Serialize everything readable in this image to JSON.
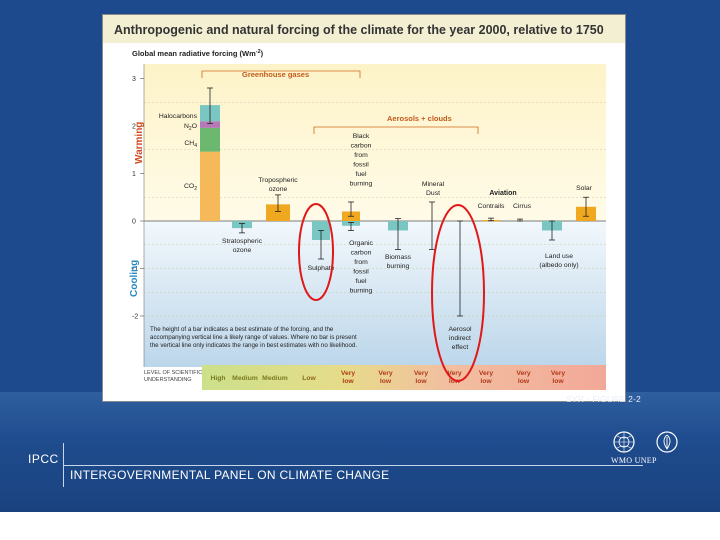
{
  "figure": {
    "title": "Anthropogenic and natural forcing of the climate for the year 2000, relative to 1750",
    "ylabel": "Global mean radiative forcing (Wm",
    "ylabel_sup": "-2",
    "ylabel_close": ")",
    "warming_label": "Warming",
    "cooling_label": "Cooling",
    "greenhouse_label": "Greenhouse gases",
    "aerosols_label": "Aerosols + clouds",
    "aviation_label": "Aviation",
    "note_lines": [
      "The height of a bar indicates a best estimate of the forcing, and the",
      "accompanying vertical line a likely range of values.  Where no bar is present",
      "the vertical line only indicates the range in best estimates with no likelihood."
    ],
    "los_label": [
      "LEVEL OF SCIENTIFIC",
      "UNDERSTANDING"
    ],
    "caption": "SYR - FIGURE 2-2"
  },
  "chart_data": {
    "type": "bar",
    "title": "Anthropogenic and natural forcing of the climate for the year 2000, relative to 1750",
    "ylabel": "Global mean radiative forcing (Wm-2)",
    "ylim": [
      -2.4,
      3.2
    ],
    "yticks": [
      -2,
      -1,
      0,
      1,
      2,
      3
    ],
    "grid": false,
    "categories": [
      {
        "key": "ghg",
        "label": "Greenhouse gases",
        "stack": [
          {
            "name": "CO2",
            "value": 1.46,
            "color": "#f5b959"
          },
          {
            "name": "CH4",
            "value": 0.5,
            "color": "#6cb871"
          },
          {
            "name": "N2O",
            "value": 0.14,
            "color": "#b57ab5"
          },
          {
            "name": "Halocarbons",
            "value": 0.34,
            "color": "#79c6c3"
          }
        ],
        "value": 2.44,
        "range": [
          2.05,
          2.8
        ],
        "understanding": "High"
      },
      {
        "key": "strat_ozone",
        "label": "Stratospheric ozone",
        "value": -0.15,
        "range": [
          -0.25,
          -0.05
        ],
        "color": "#79c6c3",
        "understanding": "Medium"
      },
      {
        "key": "trop_ozone",
        "label": "Tropospheric ozone",
        "value": 0.35,
        "range": [
          0.2,
          0.55
        ],
        "color": "#f0a820",
        "understanding": "Medium"
      },
      {
        "key": "sulphate",
        "label": "Sulphate",
        "value": -0.4,
        "range": [
          -0.8,
          -0.2
        ],
        "color": "#79c6c3",
        "understanding": "Low"
      },
      {
        "key": "fossil_bc",
        "label": "Black carbon from fossil fuel burning",
        "value": 0.2,
        "range": [
          0.1,
          0.4
        ],
        "color": "#f0a820",
        "understanding": "Very low"
      },
      {
        "key": "fossil_oc",
        "label": "Organic carbon from fossil fuel burning",
        "value": -0.1,
        "range": [
          -0.2,
          -0.03
        ],
        "color": "#79c6c3",
        "understanding": "Very low"
      },
      {
        "key": "biomass",
        "label": "Biomass burning",
        "value": -0.2,
        "range": [
          -0.6,
          0.05
        ],
        "color": "#79c6c3",
        "understanding": "Very low"
      },
      {
        "key": "mineral_dust",
        "label": "Mineral Dust",
        "value": null,
        "range": [
          -0.6,
          0.4
        ],
        "color": "#79c6c3",
        "understanding": "Very low"
      },
      {
        "key": "aerosol_indirect",
        "label": "Aerosol indirect effect",
        "value": null,
        "range": [
          -2.0,
          0.0
        ],
        "color": "#79c6c3",
        "understanding": "Very low"
      },
      {
        "key": "contrails",
        "label": "Contrails",
        "value": 0.02,
        "range": [
          0.005,
          0.06
        ],
        "color": "#f0a820",
        "understanding": "Very low"
      },
      {
        "key": "cirrus",
        "label": "Cirrus",
        "value": null,
        "range": [
          0.0,
          0.04
        ],
        "color": "#f0a820",
        "understanding": "Very low"
      },
      {
        "key": "land_use",
        "label": "Land use (albedo only)",
        "value": -0.2,
        "range": [
          -0.4,
          0.0
        ],
        "color": "#79c6c3",
        "understanding": "Very low"
      },
      {
        "key": "solar",
        "label": "Solar",
        "value": 0.3,
        "range": [
          0.1,
          0.5
        ],
        "color": "#f0a820",
        "understanding": "Very low"
      }
    ],
    "bar_labels": {
      "halocarbons": "Halocarbons",
      "n2o": "N",
      "n2o_sub": "2",
      "n2o_end": "O",
      "ch4": "CH",
      "ch4_sub": "4",
      "co2": "CO",
      "co2_sub": "2",
      "strat_ozone": [
        "Stratospheric",
        "ozone"
      ],
      "trop_ozone": [
        "Tropospheric",
        "ozone"
      ],
      "black_carbon": [
        "Black",
        "carbon",
        "from",
        "fossil",
        "fuel",
        "burning"
      ],
      "organic_carbon": [
        "Organic",
        "carbon",
        "from",
        "fossil",
        "fuel",
        "burning"
      ],
      "sulphate": "Sulphate",
      "biomass": [
        "Biomass",
        "burning"
      ],
      "mineral_dust": [
        "Mineral",
        "Dust"
      ],
      "aerosol_indirect": [
        "Aerosol",
        "indirect",
        "effect"
      ],
      "contrails": "Contrails",
      "cirrus": "Cirrus",
      "land_use": [
        "Land use",
        "(albedo only)"
      ],
      "solar": "Solar"
    },
    "understanding_levels": [
      {
        "text": "High",
        "color": "#7a7a20"
      },
      {
        "text": "Medium",
        "color": "#7a7a20"
      },
      {
        "text": "Medium",
        "color": "#7a7a20"
      },
      {
        "text": "Low",
        "color": "#8a6a1a"
      },
      {
        "text": "Very low",
        "color": "#b03a1a"
      },
      {
        "text": "Very low",
        "color": "#b03a1a"
      },
      {
        "text": "Very low",
        "color": "#b03a1a"
      },
      {
        "text": "Very low",
        "color": "#b03a1a"
      },
      {
        "text": "Very low",
        "color": "#b03a1a"
      },
      {
        "text": "Very low",
        "color": "#b03a1a"
      },
      {
        "text": "Very low",
        "color": "#b03a1a"
      }
    ],
    "highlight_color": "#e01818"
  },
  "footer": {
    "org_abbrev": "IPCC",
    "org_name": "INTERGOVERNMENTAL PANEL ON CLIMATE CHANGE",
    "partners": "WMO  UNEP"
  }
}
